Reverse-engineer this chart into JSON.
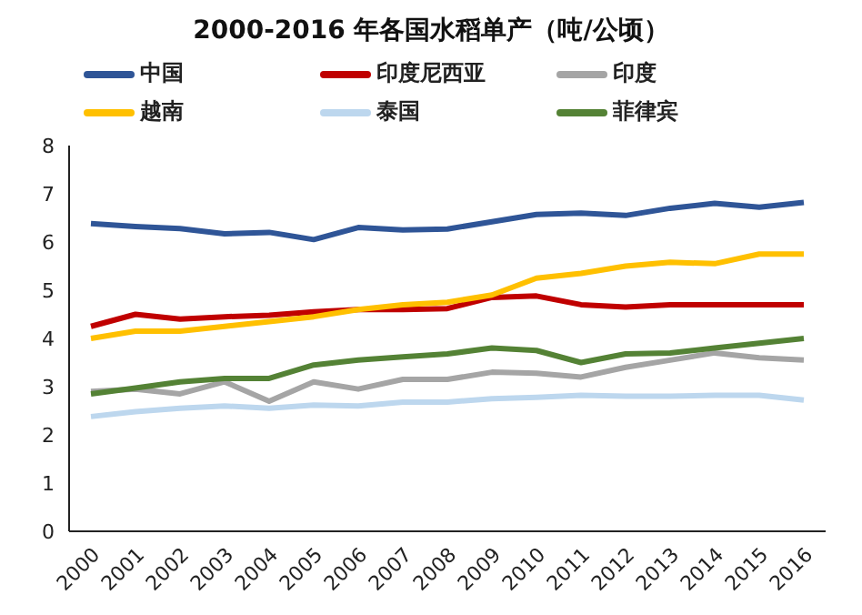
{
  "chart_data": {
    "type": "line",
    "title": "2000-2016 年各国水稻单产（吨/公顷）",
    "categories": [
      "2000",
      "2001",
      "2002",
      "2003",
      "2004",
      "2005",
      "2006",
      "2007",
      "2008",
      "2009",
      "2010",
      "2011",
      "2012",
      "2013",
      "2014",
      "2015",
      "2016"
    ],
    "series": [
      {
        "name": "中国",
        "color": "#2f5597",
        "values": [
          6.38,
          6.32,
          6.28,
          6.17,
          6.2,
          6.05,
          6.3,
          6.25,
          6.27,
          6.42,
          6.57,
          6.6,
          6.55,
          6.7,
          6.8,
          6.72,
          6.82
        ]
      },
      {
        "name": "印度尼西亚",
        "color": "#c00000",
        "values": [
          4.25,
          4.5,
          4.4,
          4.45,
          4.48,
          4.55,
          4.6,
          4.6,
          4.62,
          4.85,
          4.88,
          4.7,
          4.65,
          4.7,
          4.7,
          4.7,
          4.7
        ]
      },
      {
        "name": "印度",
        "color": "#a5a5a5",
        "values": [
          2.9,
          2.95,
          2.85,
          3.1,
          2.7,
          3.1,
          2.95,
          3.15,
          3.15,
          3.3,
          3.28,
          3.2,
          3.4,
          3.55,
          3.7,
          3.6,
          3.55
        ]
      },
      {
        "name": "越南",
        "color": "#ffc000",
        "values": [
          4.0,
          4.15,
          4.15,
          4.25,
          4.35,
          4.45,
          4.6,
          4.7,
          4.75,
          4.9,
          5.25,
          5.35,
          5.5,
          5.58,
          5.55,
          5.75,
          5.75
        ]
      },
      {
        "name": "泰国",
        "color": "#bdd7ee",
        "values": [
          2.38,
          2.48,
          2.55,
          2.6,
          2.55,
          2.62,
          2.6,
          2.68,
          2.68,
          2.75,
          2.78,
          2.82,
          2.8,
          2.8,
          2.82,
          2.82,
          2.72
        ]
      },
      {
        "name": "菲律宾",
        "color": "#548235",
        "values": [
          2.85,
          2.97,
          3.1,
          3.17,
          3.17,
          3.45,
          3.55,
          3.62,
          3.68,
          3.8,
          3.75,
          3.5,
          3.68,
          3.7,
          3.8,
          3.9,
          4.0
        ]
      }
    ],
    "ylim": [
      0,
      8
    ],
    "yticks": [
      0,
      1,
      2,
      3,
      4,
      5,
      6,
      7,
      8
    ],
    "legend": "top",
    "marker": "none",
    "line_style": "solid"
  }
}
